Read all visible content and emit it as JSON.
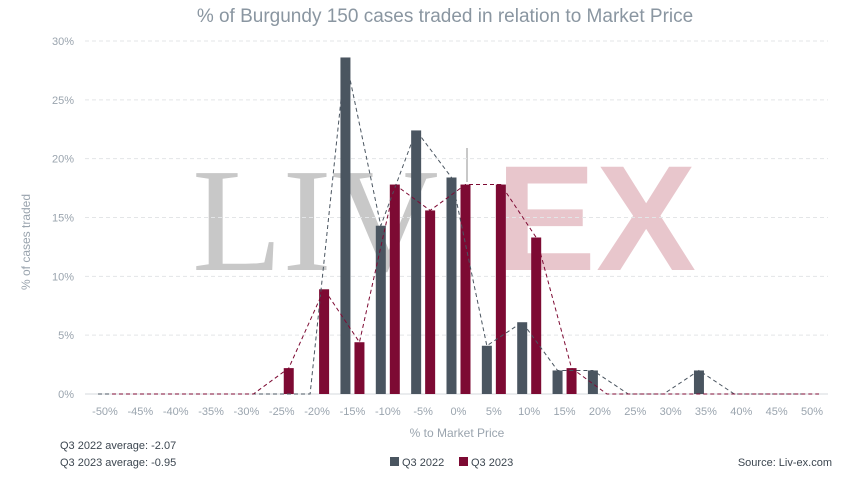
{
  "chart_data": {
    "type": "bar",
    "title": "% of Burgundy 150 cases traded in relation to Market Price",
    "xlabel": "% to Market Price",
    "ylabel": "% of cases traded",
    "categories": [
      "-50%",
      "-45%",
      "-40%",
      "-35%",
      "-30%",
      "-25%",
      "-20%",
      "-15%",
      "-10%",
      "-5%",
      "0%",
      "5%",
      "10%",
      "15%",
      "20%",
      "25%",
      "30%",
      "35%",
      "40%",
      "45%",
      "50%"
    ],
    "yticks": [
      "0%",
      "5%",
      "10%",
      "15%",
      "20%",
      "25%",
      "30%"
    ],
    "ylim": [
      0,
      30
    ],
    "grid": true,
    "legend_position": "bottom",
    "series": [
      {
        "name": "Q3 2022",
        "color": "#4a5560",
        "values": [
          0,
          0,
          0,
          0,
          0,
          0,
          0,
          28.6,
          14.3,
          22.4,
          18.4,
          4.1,
          6.1,
          2.0,
          2.0,
          0,
          0,
          2.0,
          0,
          0,
          0
        ]
      },
      {
        "name": "Q3 2023",
        "color": "#7d0a33",
        "values": [
          0,
          0,
          0,
          0,
          0,
          2.2,
          8.9,
          4.4,
          17.8,
          15.6,
          17.8,
          17.8,
          13.3,
          2.2,
          0,
          0,
          0,
          0,
          0,
          0,
          0
        ]
      }
    ]
  },
  "notes": {
    "avg_2022": "Q3 2022 average: -2.07",
    "avg_2023": "Q3 2023 average: -0.95",
    "source": "Source: Liv-ex.com"
  },
  "watermark": {
    "part1": "LIV",
    "part2": "EX"
  }
}
